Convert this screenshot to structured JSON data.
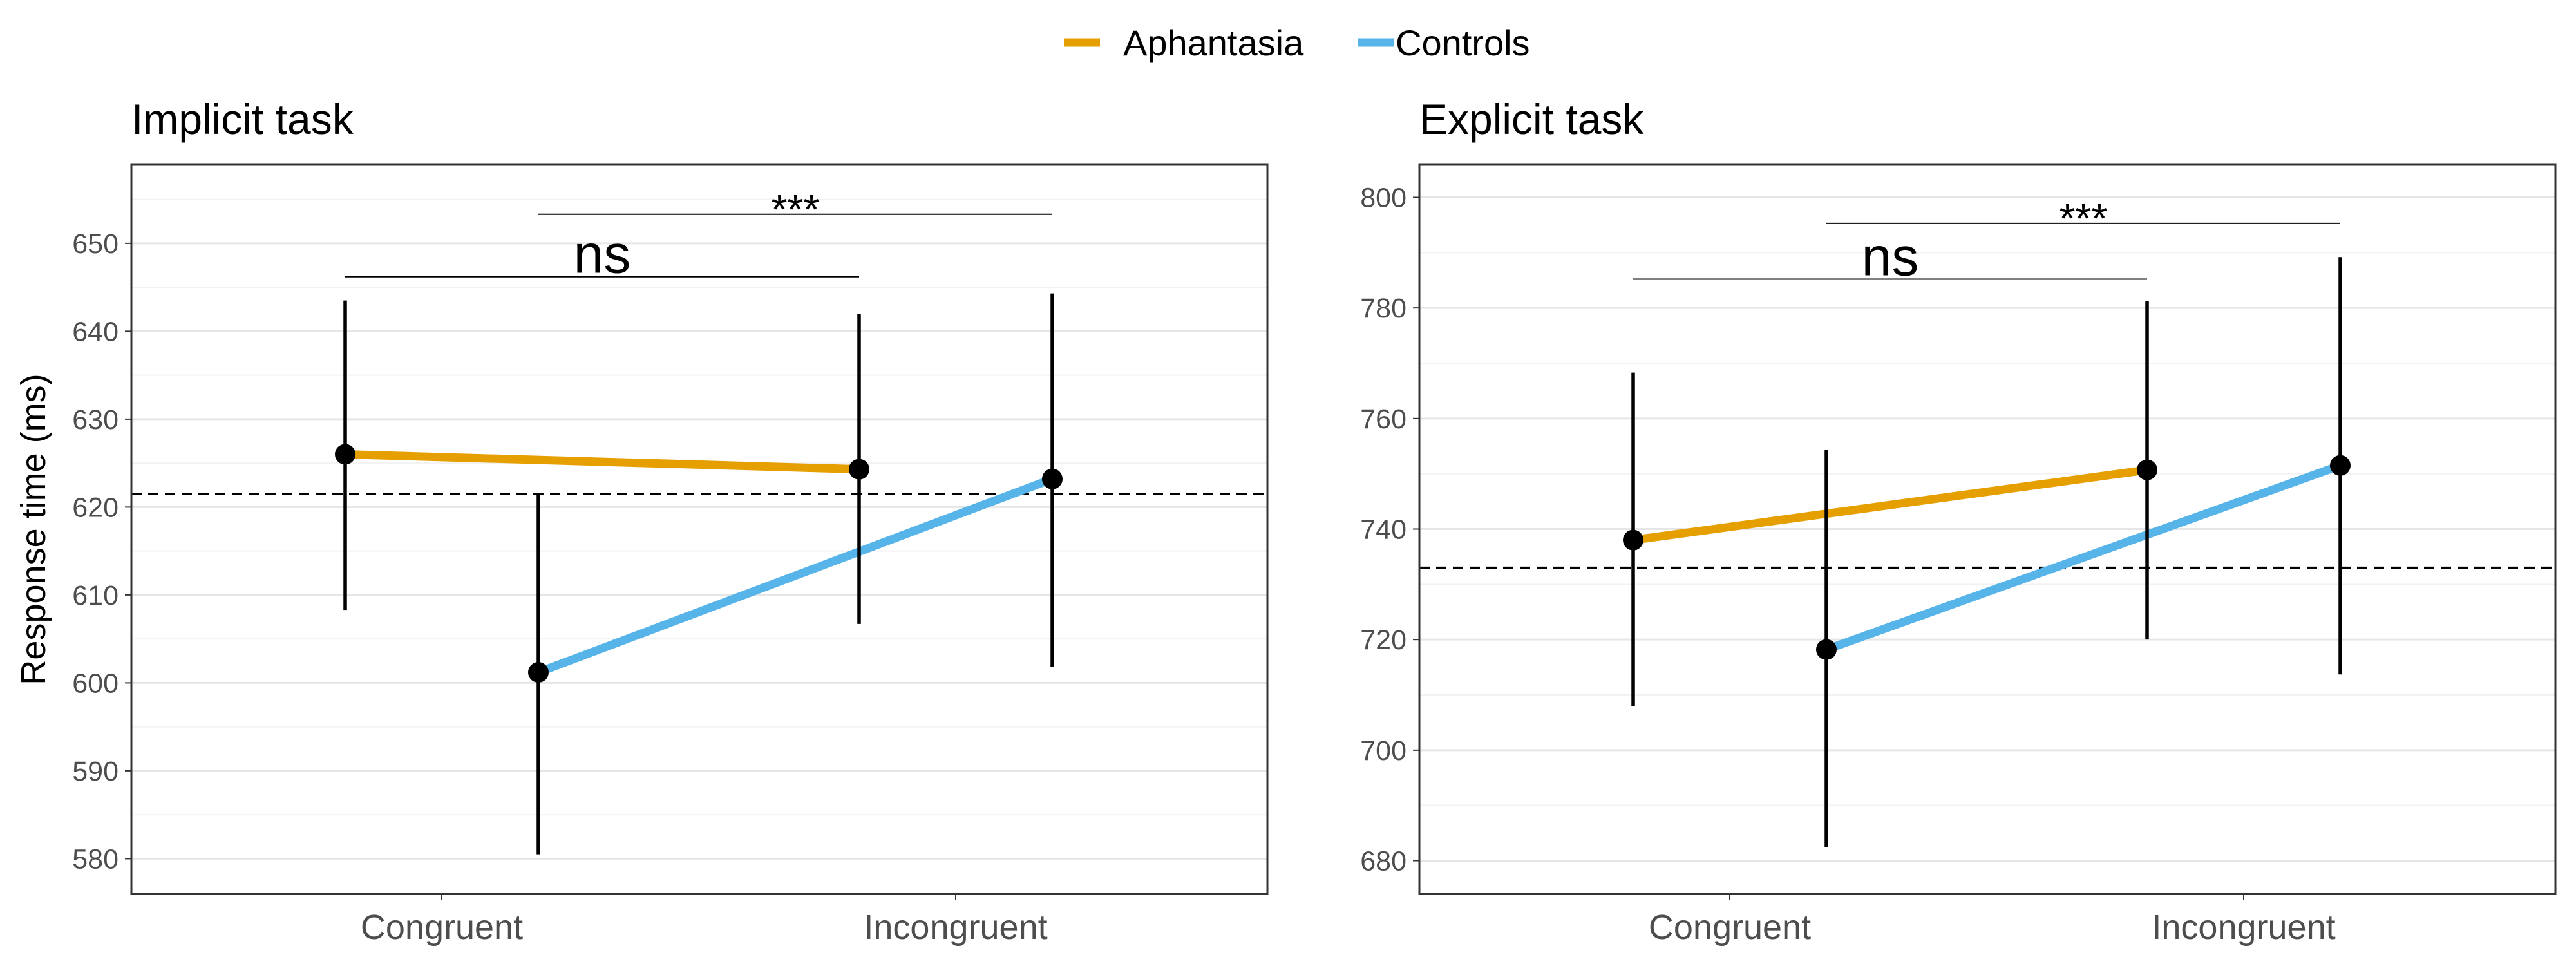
{
  "legend": {
    "items": [
      {
        "label": "Aphantasia",
        "color": "#E69F00"
      },
      {
        "label": "Controls",
        "color": "#56B4E9"
      }
    ]
  },
  "y_axis_label": "Response time (ms)",
  "chart_data": [
    {
      "type": "line",
      "title": "Implicit task",
      "xlabel": "",
      "ylabel": "Response time (ms)",
      "categories": [
        "Congruent",
        "Incongruent"
      ],
      "ylim": [
        576,
        659
      ],
      "yticks": [
        580,
        590,
        600,
        610,
        620,
        630,
        640,
        650
      ],
      "grid": true,
      "reference_line": 621.5,
      "series": [
        {
          "name": "Aphantasia",
          "color": "#E69F00",
          "values": [
            626,
            624.3
          ],
          "ci_low": [
            608.3,
            606.7
          ],
          "ci_high": [
            643.5,
            642
          ]
        },
        {
          "name": "Controls",
          "color": "#56B4E9",
          "values": [
            601.2,
            623.2
          ],
          "ci_low": [
            580.5,
            601.8
          ],
          "ci_high": [
            621.5,
            644.3
          ]
        }
      ],
      "annotations": [
        {
          "label": "***",
          "from_series": "Controls",
          "from_category": "Congruent",
          "to_series": "Controls",
          "to_category": "Incongruent",
          "y": 653.3
        },
        {
          "label": "ns",
          "from_series": "Aphantasia",
          "from_category": "Congruent",
          "to_series": "Aphantasia",
          "to_category": "Incongruent",
          "y": 646.2
        }
      ]
    },
    {
      "type": "line",
      "title": "Explicit task",
      "xlabel": "",
      "ylabel": "",
      "categories": [
        "Congruent",
        "Incongruent"
      ],
      "ylim": [
        674,
        806
      ],
      "yticks": [
        680,
        700,
        720,
        740,
        760,
        780,
        800
      ],
      "grid": true,
      "reference_line": 733,
      "series": [
        {
          "name": "Aphantasia",
          "color": "#E69F00",
          "values": [
            738,
            750.7
          ],
          "ci_low": [
            708,
            720
          ],
          "ci_high": [
            768.3,
            781.3
          ]
        },
        {
          "name": "Controls",
          "color": "#56B4E9",
          "values": [
            718.2,
            751.5
          ],
          "ci_low": [
            682.5,
            713.7
          ],
          "ci_high": [
            754.3,
            789.2
          ]
        }
      ],
      "annotations": [
        {
          "label": "***",
          "from_series": "Controls",
          "from_category": "Congruent",
          "to_series": "Controls",
          "to_category": "Incongruent",
          "y": 795.3
        },
        {
          "label": "ns",
          "from_series": "Aphantasia",
          "from_category": "Congruent",
          "to_series": "Aphantasia",
          "to_category": "Incongruent",
          "y": 785.2
        }
      ]
    }
  ]
}
